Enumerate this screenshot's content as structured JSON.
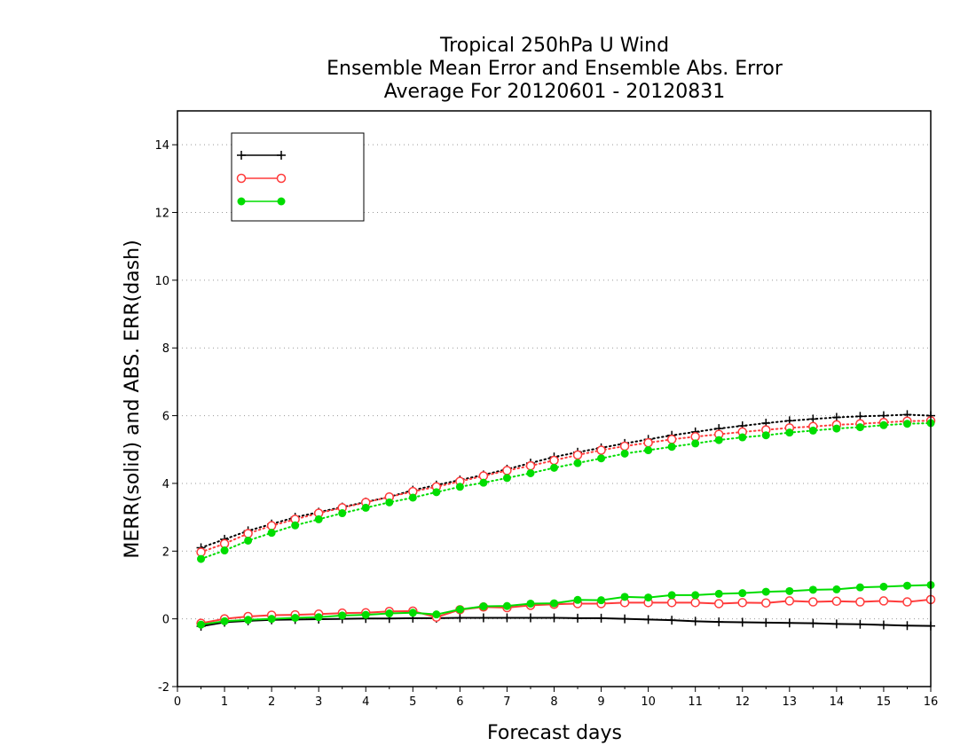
{
  "chart_data": {
    "type": "line",
    "title": [
      "Tropical 250hPa U Wind",
      "Ensemble Mean Error and Ensemble Abs. Error",
      "Average For 20120601 - 20120831"
    ],
    "xlabel": "Forecast days",
    "ylabel": "MERR(solid) and ABS. ERR(dash)",
    "xlim": [
      0,
      16
    ],
    "ylim": [
      -2,
      15
    ],
    "xticks": [
      "0",
      "1",
      "2",
      "3",
      "4",
      "5",
      "6",
      "7",
      "8",
      "9",
      "10",
      "11",
      "12",
      "13",
      "14",
      "15",
      "16"
    ],
    "yticks": [
      "-2",
      "0",
      "2",
      "4",
      "6",
      "8",
      "10",
      "12",
      "14"
    ],
    "grid": "horizontal dotted",
    "legend_position": "top-left",
    "x": [
      0.5,
      1,
      1.5,
      2,
      2.5,
      3,
      3.5,
      4,
      4.5,
      5,
      5.5,
      6,
      6.5,
      7,
      7.5,
      8,
      8.5,
      9,
      9.5,
      10,
      10.5,
      11,
      11.5,
      12,
      12.5,
      13,
      13.5,
      14,
      14.5,
      15,
      15.5,
      16
    ],
    "series": [
      {
        "name": "",
        "color": "#000000",
        "marker": "plus",
        "merr": [
          -0.22,
          -0.1,
          -0.06,
          -0.03,
          -0.02,
          -0.01,
          0.0,
          0.01,
          0.01,
          0.02,
          0.02,
          0.03,
          0.03,
          0.03,
          0.03,
          0.03,
          0.02,
          0.02,
          0.0,
          -0.02,
          -0.04,
          -0.07,
          -0.09,
          -0.1,
          -0.11,
          -0.12,
          -0.13,
          -0.15,
          -0.16,
          -0.18,
          -0.2,
          -0.21
        ],
        "abs_err": [
          2.1,
          2.35,
          2.6,
          2.8,
          3.0,
          3.15,
          3.3,
          3.45,
          3.6,
          3.8,
          3.95,
          4.1,
          4.25,
          4.42,
          4.6,
          4.78,
          4.92,
          5.05,
          5.18,
          5.3,
          5.42,
          5.52,
          5.62,
          5.7,
          5.78,
          5.85,
          5.9,
          5.95,
          5.98,
          6.0,
          6.03,
          6.0
        ]
      },
      {
        "name": "",
        "color": "#ff3b3b",
        "marker": "open-circle",
        "merr": [
          -0.13,
          0.0,
          0.07,
          0.11,
          0.12,
          0.14,
          0.17,
          0.18,
          0.22,
          0.23,
          0.05,
          0.27,
          0.35,
          0.33,
          0.4,
          0.43,
          0.45,
          0.45,
          0.48,
          0.48,
          0.48,
          0.48,
          0.45,
          0.48,
          0.47,
          0.53,
          0.5,
          0.52,
          0.5,
          0.53,
          0.5,
          0.57
        ],
        "abs_err": [
          1.97,
          2.22,
          2.52,
          2.75,
          2.94,
          3.12,
          3.28,
          3.44,
          3.6,
          3.76,
          3.9,
          4.06,
          4.22,
          4.38,
          4.52,
          4.68,
          4.84,
          4.98,
          5.1,
          5.2,
          5.3,
          5.38,
          5.45,
          5.52,
          5.58,
          5.64,
          5.68,
          5.73,
          5.76,
          5.8,
          5.84,
          5.85
        ]
      },
      {
        "name": "",
        "color": "#00dd00",
        "marker": "filled-circle",
        "merr": [
          -0.17,
          -0.07,
          -0.03,
          0.0,
          0.03,
          0.05,
          0.1,
          0.12,
          0.16,
          0.18,
          0.13,
          0.28,
          0.37,
          0.38,
          0.45,
          0.46,
          0.56,
          0.55,
          0.65,
          0.63,
          0.7,
          0.7,
          0.74,
          0.76,
          0.8,
          0.82,
          0.86,
          0.87,
          0.93,
          0.95,
          0.98,
          1.0
        ],
        "abs_err": [
          1.77,
          2.02,
          2.31,
          2.54,
          2.76,
          2.94,
          3.12,
          3.28,
          3.44,
          3.58,
          3.74,
          3.9,
          4.02,
          4.16,
          4.3,
          4.46,
          4.6,
          4.74,
          4.88,
          4.98,
          5.08,
          5.18,
          5.28,
          5.36,
          5.42,
          5.5,
          5.56,
          5.62,
          5.66,
          5.72,
          5.76,
          5.78
        ]
      }
    ]
  }
}
